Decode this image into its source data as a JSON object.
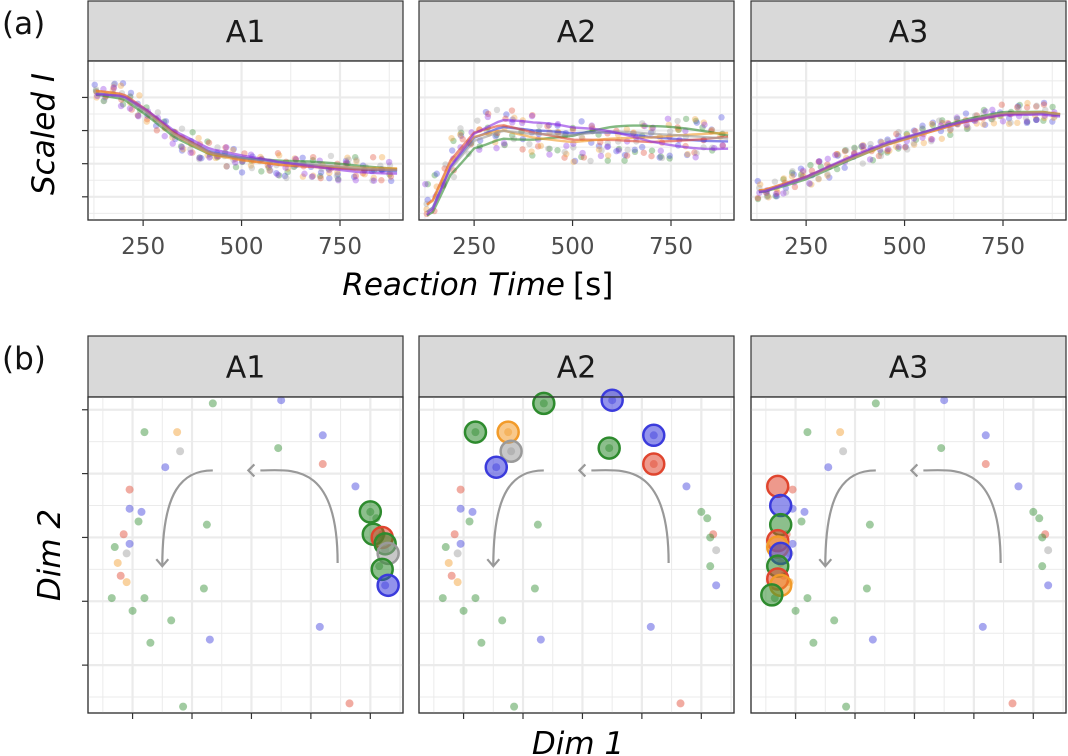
{
  "figure_labels": {
    "a": "(a)",
    "b": "(b)"
  },
  "colors": {
    "series": [
      "#2e8b2e",
      "#3b3bdc",
      "#e0452e",
      "#f29b2a",
      "#9a9a9a",
      "#8a2be2"
    ],
    "strip_bg": "#d9d9d9",
    "grid": "#ebebeb",
    "arrow": "#999999"
  },
  "chart_data": [
    {
      "id": "a",
      "type": "scatter",
      "facets": [
        "A1",
        "A2",
        "A3"
      ],
      "xlabel": "Reaction Time",
      "xunit": "[s]",
      "ylabel": "Scaled I",
      "xlim": [
        110,
        910
      ],
      "ylim": [
        -2.2,
        2.6
      ],
      "xticks": [
        250,
        500,
        750
      ],
      "xtick_labels": [
        "250",
        "500",
        "750"
      ],
      "yticks": [
        -1.5,
        -0.5,
        0.5,
        1.5
      ],
      "curves": {
        "A1": [
          [
            140,
            1.7
          ],
          [
            200,
            1.6
          ],
          [
            260,
            1.1
          ],
          [
            330,
            0.4
          ],
          [
            420,
            -0.2
          ],
          [
            500,
            -0.4
          ],
          [
            600,
            -0.55
          ],
          [
            700,
            -0.6
          ],
          [
            800,
            -0.65
          ],
          [
            890,
            -0.65
          ]
        ],
        "A2": [
          [
            140,
            -1.7
          ],
          [
            190,
            -0.4
          ],
          [
            250,
            0.4
          ],
          [
            320,
            0.6
          ],
          [
            400,
            0.35
          ],
          [
            500,
            0.15
          ],
          [
            600,
            0.2
          ],
          [
            700,
            0.2
          ],
          [
            800,
            0.3
          ],
          [
            890,
            0.4
          ]
        ],
        "A3": [
          [
            140,
            -1.3
          ],
          [
            250,
            -0.9
          ],
          [
            350,
            -0.4
          ],
          [
            450,
            0.05
          ],
          [
            550,
            0.4
          ],
          [
            650,
            0.75
          ],
          [
            750,
            1.0
          ],
          [
            850,
            1.05
          ],
          [
            890,
            1.0
          ]
        ]
      },
      "curve_spread": {
        "A1": 0.25,
        "A2": 0.75,
        "A3": 0.12
      },
      "grid": true,
      "legend": "none"
    },
    {
      "id": "b",
      "type": "scatter",
      "facets": [
        "A1",
        "A2",
        "A3"
      ],
      "xlabel": "Dim 1",
      "ylabel": "Dim 2",
      "xlim": [
        -5.5,
        5.1
      ],
      "ylim": [
        -5.5,
        4.4
      ],
      "xticks": [
        -4,
        -2,
        0,
        2,
        4
      ],
      "yticks": [
        -4,
        -2,
        0,
        2,
        4
      ],
      "show_tick_labels": false,
      "grid": true,
      "legend": "none",
      "points": [
        {
          "x": -1.3,
          "y": 4.2,
          "c": 0
        },
        {
          "x": 1.0,
          "y": 4.3,
          "c": 1
        },
        {
          "x": -3.6,
          "y": 3.3,
          "c": 0
        },
        {
          "x": -2.5,
          "y": 3.3,
          "c": 3
        },
        {
          "x": -2.4,
          "y": 2.7,
          "c": 4
        },
        {
          "x": -2.9,
          "y": 2.2,
          "c": 1
        },
        {
          "x": 0.9,
          "y": 2.8,
          "c": 0
        },
        {
          "x": 2.4,
          "y": 3.2,
          "c": 1
        },
        {
          "x": 2.4,
          "y": 2.3,
          "c": 2
        },
        {
          "x": 3.5,
          "y": 1.6,
          "c": 1
        },
        {
          "x": -4.1,
          "y": 1.5,
          "c": 2
        },
        {
          "x": -4.1,
          "y": 0.9,
          "c": 1
        },
        {
          "x": -3.7,
          "y": 0.8,
          "c": 1
        },
        {
          "x": -3.8,
          "y": 0.5,
          "c": 0
        },
        {
          "x": -4.3,
          "y": 0.1,
          "c": 2
        },
        {
          "x": -4.1,
          "y": -0.2,
          "c": 1
        },
        {
          "x": -4.6,
          "y": -0.3,
          "c": 0
        },
        {
          "x": -4.2,
          "y": -0.5,
          "c": 4
        },
        {
          "x": -4.5,
          "y": -0.8,
          "c": 3
        },
        {
          "x": -4.4,
          "y": -1.2,
          "c": 2
        },
        {
          "x": -4.2,
          "y": -1.4,
          "c": 3
        },
        {
          "x": -4.7,
          "y": -1.9,
          "c": 0
        },
        {
          "x": -3.6,
          "y": -1.9,
          "c": 0
        },
        {
          "x": -4.0,
          "y": -2.3,
          "c": 0
        },
        {
          "x": -2.7,
          "y": -2.6,
          "c": 0
        },
        {
          "x": -3.4,
          "y": -3.3,
          "c": 0
        },
        {
          "x": -1.6,
          "y": -1.6,
          "c": 0
        },
        {
          "x": -1.5,
          "y": 0.4,
          "c": 0
        },
        {
          "x": -1.4,
          "y": -3.2,
          "c": 1
        },
        {
          "x": 2.3,
          "y": -2.8,
          "c": 1
        },
        {
          "x": -2.3,
          "y": -5.3,
          "c": 0
        },
        {
          "x": 3.3,
          "y": -5.2,
          "c": 2
        },
        {
          "x": 4.0,
          "y": 0.8,
          "c": 0
        },
        {
          "x": 4.2,
          "y": 0.6,
          "c": 0
        },
        {
          "x": 4.4,
          "y": 0.1,
          "c": 2
        },
        {
          "x": 4.3,
          "y": 0.0,
          "c": 0
        },
        {
          "x": 4.5,
          "y": -0.4,
          "c": 4
        },
        {
          "x": 4.3,
          "y": -0.9,
          "c": 0
        },
        {
          "x": 4.5,
          "y": -1.5,
          "c": 1
        }
      ],
      "large_points": {
        "A1": [
          {
            "x": 4.0,
            "y": 0.8,
            "c": 0
          },
          {
            "x": 4.1,
            "y": 0.1,
            "c": 0
          },
          {
            "x": 4.4,
            "y": 0.0,
            "c": 2
          },
          {
            "x": 4.5,
            "y": -0.2,
            "c": 0
          },
          {
            "x": 4.6,
            "y": -0.5,
            "c": 4
          },
          {
            "x": 4.4,
            "y": -1.0,
            "c": 0
          },
          {
            "x": 4.6,
            "y": -1.5,
            "c": 1
          }
        ],
        "A2": [
          {
            "x": -1.3,
            "y": 4.2,
            "c": 0
          },
          {
            "x": 1.0,
            "y": 4.3,
            "c": 1
          },
          {
            "x": -3.6,
            "y": 3.3,
            "c": 0
          },
          {
            "x": -2.5,
            "y": 3.3,
            "c": 3
          },
          {
            "x": -2.4,
            "y": 2.7,
            "c": 4
          },
          {
            "x": -2.9,
            "y": 2.2,
            "c": 1
          },
          {
            "x": 0.9,
            "y": 2.8,
            "c": 0
          },
          {
            "x": 2.4,
            "y": 3.2,
            "c": 1
          },
          {
            "x": 2.4,
            "y": 2.3,
            "c": 2
          }
        ],
        "A3": [
          {
            "x": -4.6,
            "y": 1.6,
            "c": 2
          },
          {
            "x": -4.5,
            "y": 1.0,
            "c": 1
          },
          {
            "x": -4.5,
            "y": 0.4,
            "c": 0
          },
          {
            "x": -4.6,
            "y": -0.1,
            "c": 2
          },
          {
            "x": -4.6,
            "y": -0.3,
            "c": 3
          },
          {
            "x": -4.5,
            "y": -0.5,
            "c": 1
          },
          {
            "x": -4.6,
            "y": -0.9,
            "c": 0
          },
          {
            "x": -4.6,
            "y": -1.3,
            "c": 2
          },
          {
            "x": -4.5,
            "y": -1.5,
            "c": 3
          },
          {
            "x": -4.8,
            "y": -1.8,
            "c": 0
          }
        ]
      },
      "arrow": {
        "from": [
          -1.3,
          2.1
        ],
        "peak": [
          0.3,
          2.1
        ],
        "to": [
          -3.0,
          -0.9
        ],
        "start": [
          2.9,
          -0.8
        ]
      }
    }
  ]
}
